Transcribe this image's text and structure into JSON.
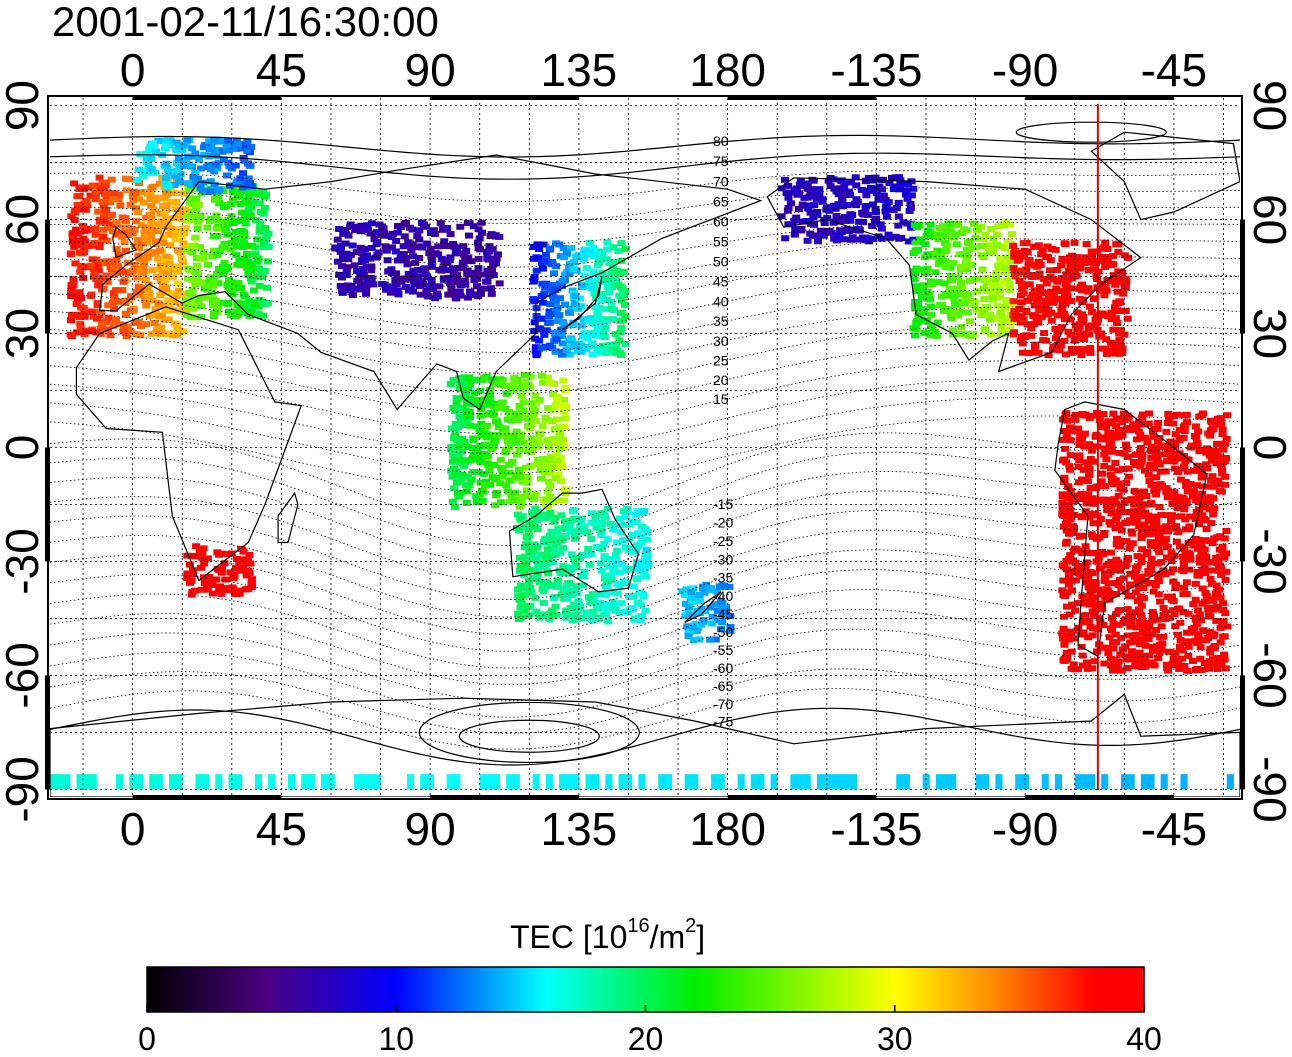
{
  "title": "2001-02-11/16:30:00",
  "x_ticks": [
    "0",
    "45",
    "90",
    "135",
    "180",
    "-135",
    "-90",
    "-45"
  ],
  "y_ticks": [
    "90",
    "60",
    "30",
    "0",
    "-30",
    "-60",
    "-90"
  ],
  "contour_labels": [
    "80",
    "75",
    "70",
    "65",
    "60",
    "55",
    "50",
    "45",
    "40",
    "35",
    "30",
    "25",
    "20",
    "15",
    "-15",
    "-20",
    "-25",
    "-30",
    "-35",
    "-40",
    "-45",
    "-50",
    "-55",
    "-60",
    "-65",
    "-70",
    "-75"
  ],
  "colorbar": {
    "label_main": "TEC  [10",
    "label_sup": "16",
    "label_mid": "/m",
    "label_sup2": "2",
    "label_end": "]",
    "ticks": [
      "0",
      "10",
      "20",
      "30",
      "40"
    ],
    "min": 0,
    "max": 40
  },
  "map": {
    "type": "heatmap",
    "projection": "equirectangular",
    "lon_range": [
      -25,
      335
    ],
    "lat_range": [
      -92,
      92
    ],
    "quantity": "TEC",
    "meridian_marker_lon": 292,
    "regions": [
      {
        "name": "western-europe",
        "lon": [
          -20,
          15
        ],
        "lat": [
          30,
          72
        ],
        "tec": [
          38,
          32
        ]
      },
      {
        "name": "central-europe",
        "lon": [
          15,
          40
        ],
        "lat": [
          35,
          70
        ],
        "tec": [
          26,
          20
        ]
      },
      {
        "name": "northern-scandinavia",
        "lon": [
          0,
          35
        ],
        "lat": [
          68,
          82
        ],
        "tec": [
          16,
          12
        ]
      },
      {
        "name": "russia",
        "lon": [
          60,
          110
        ],
        "lat": [
          40,
          60
        ],
        "tec": [
          7,
          6
        ]
      },
      {
        "name": "china-japan",
        "lon": [
          120,
          148
        ],
        "lat": [
          25,
          55
        ],
        "tec": [
          10,
          20
        ]
      },
      {
        "name": "se-asia",
        "lon": [
          95,
          130
        ],
        "lat": [
          -15,
          20
        ],
        "tec": [
          20,
          28
        ]
      },
      {
        "name": "australia",
        "lon": [
          115,
          155
        ],
        "lat": [
          -45,
          -15
        ],
        "tec": [
          20,
          16
        ]
      },
      {
        "name": "new-zealand",
        "lon": [
          165,
          180
        ],
        "lat": [
          -50,
          -35
        ],
        "tec": [
          15,
          13
        ]
      },
      {
        "name": "alaska",
        "lon": [
          195,
          235
        ],
        "lat": [
          55,
          72
        ],
        "tec": [
          7,
          8
        ]
      },
      {
        "name": "western-north-america",
        "lon": [
          235,
          265
        ],
        "lat": [
          30,
          60
        ],
        "tec": [
          22,
          28
        ]
      },
      {
        "name": "eastern-north-america",
        "lon": [
          265,
          300
        ],
        "lat": [
          25,
          55
        ],
        "tec": [
          38,
          40
        ]
      },
      {
        "name": "south-america",
        "lon": [
          280,
          330
        ],
        "lat": [
          -58,
          10
        ],
        "tec": [
          39,
          40
        ]
      },
      {
        "name": "south-africa",
        "lon": [
          15,
          35
        ],
        "lat": [
          -38,
          -25
        ],
        "tec": [
          39,
          40
        ]
      },
      {
        "name": "antarctic-margin",
        "lon": [
          -25,
          335
        ],
        "lat": [
          -90,
          -86
        ],
        "tec": [
          17,
          14
        ]
      }
    ]
  }
}
